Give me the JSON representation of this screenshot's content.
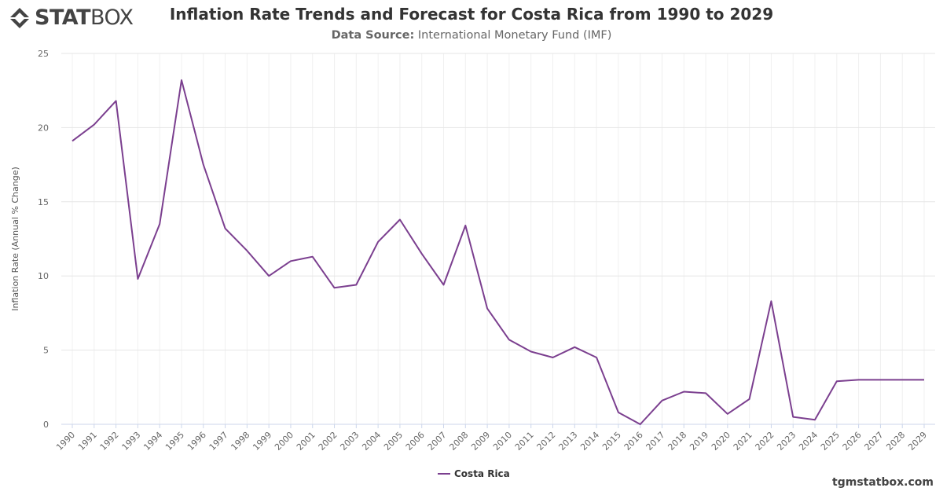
{
  "header": {
    "logo_text_bold": "STAT",
    "logo_text_light": "BOX",
    "title": "Inflation Rate Trends and Forecast for Costa Rica from 1990 to 2029",
    "source_label": "Data Source:",
    "source_value": "International Monetary Fund (IMF)"
  },
  "footer": {
    "watermark": "tgmstatbox.com"
  },
  "colors": {
    "line": "#7b3f8f",
    "grid": "#e6e6e6",
    "text": "#333333"
  },
  "chart_data": {
    "type": "line",
    "title": "Inflation Rate Trends and Forecast for Costa Rica from 1990 to 2029",
    "xlabel": "",
    "ylabel": "Inflation Rate (Annual % Change)",
    "ylim": [
      0,
      25
    ],
    "yticks": [
      0,
      5,
      10,
      15,
      20,
      25
    ],
    "grid": true,
    "legend_position": "bottom-center",
    "categories": [
      "1990",
      "1991",
      "1992",
      "1993",
      "1994",
      "1995",
      "1996",
      "1997",
      "1998",
      "1999",
      "2000",
      "2001",
      "2002",
      "2003",
      "2004",
      "2005",
      "2006",
      "2007",
      "2008",
      "2009",
      "2010",
      "2011",
      "2012",
      "2013",
      "2014",
      "2015",
      "2016",
      "2017",
      "2018",
      "2019",
      "2020",
      "2021",
      "2022",
      "2023",
      "2024",
      "2025",
      "2026",
      "2027",
      "2028",
      "2029"
    ],
    "series": [
      {
        "name": "Costa Rica",
        "color": "#7b3f8f",
        "values": [
          19.1,
          20.2,
          21.8,
          9.8,
          13.5,
          23.2,
          17.5,
          13.2,
          11.7,
          10.0,
          11.0,
          11.3,
          9.2,
          9.4,
          12.3,
          13.8,
          11.5,
          9.4,
          13.4,
          7.8,
          5.7,
          4.9,
          4.5,
          5.2,
          4.5,
          0.8,
          0.0,
          1.6,
          2.2,
          2.1,
          0.7,
          1.7,
          8.3,
          0.5,
          0.3,
          2.9,
          3.0,
          3.0,
          3.0,
          3.0
        ]
      }
    ]
  }
}
